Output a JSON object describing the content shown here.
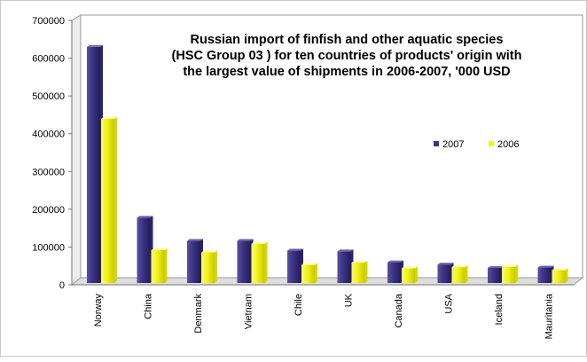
{
  "chart_data": {
    "type": "bar",
    "title_lines": [
      "Russian import of finfish and other aquatic species",
      "(HSC Group 03 ) for ten countries of products' origin with",
      "the largest value of shipments in 2006-2007, '000 USD"
    ],
    "categories": [
      "Norway",
      "China",
      "Denmark",
      "Vietnam",
      "Chile",
      "UK",
      "Canada",
      "USA",
      "Iceland",
      "Mauritania"
    ],
    "series": [
      {
        "name": "2007",
        "color": "#3a3383",
        "values": [
          625000,
          173000,
          112000,
          112000,
          86000,
          84000,
          55000,
          49000,
          40000,
          41000
        ]
      },
      {
        "name": "2006",
        "color": "#f2f21a",
        "values": [
          435000,
          87000,
          81000,
          104000,
          48000,
          54000,
          39000,
          42000,
          43000,
          34000
        ]
      }
    ],
    "y_ticks": [
      "0",
      "100000",
      "200000",
      "300000",
      "400000",
      "500000",
      "600000",
      "700000"
    ],
    "ylim": [
      0,
      700000
    ],
    "legend_position": "right",
    "grid": false
  }
}
